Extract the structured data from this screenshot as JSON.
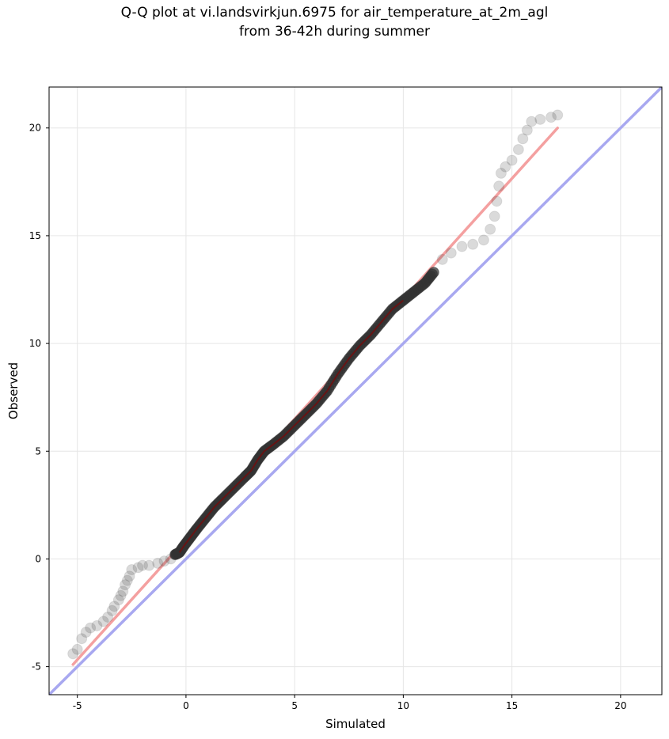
{
  "chart_data": {
    "type": "scatter",
    "title_line1": "Q-Q plot at vi.landsvirkjun.6975 for air_temperature_at_2m_agl",
    "title_line2": "from 36-42h during summer",
    "xlabel": "Simulated",
    "ylabel": "Observed",
    "xlim": [
      -6.3,
      21.9
    ],
    "ylim": [
      -6.3,
      21.9
    ],
    "xticks": [
      -5,
      0,
      5,
      10,
      15,
      20
    ],
    "yticks": [
      -5,
      0,
      5,
      10,
      15,
      20
    ],
    "grid": true,
    "colors": {
      "points": "#333333",
      "fit_line": "#f4a0a0",
      "identity_line": "#a8a8f0",
      "dense_core": "#8b0000"
    },
    "series": [
      {
        "values": [
          [
            -5.2,
            -4.4
          ],
          [
            -5.0,
            -4.2
          ],
          [
            -4.8,
            -3.7
          ],
          [
            -4.6,
            -3.4
          ],
          [
            -4.4,
            -3.2
          ],
          [
            -4.1,
            -3.1
          ],
          [
            -3.8,
            -2.9
          ],
          [
            -3.6,
            -2.7
          ],
          [
            -3.4,
            -2.4
          ],
          [
            -3.3,
            -2.2
          ],
          [
            -3.1,
            -1.9
          ],
          [
            -3.0,
            -1.7
          ],
          [
            -2.9,
            -1.5
          ],
          [
            -2.8,
            -1.2
          ],
          [
            -2.7,
            -1.0
          ],
          [
            -2.6,
            -0.8
          ],
          [
            -2.5,
            -0.5
          ],
          [
            -2.2,
            -0.4
          ],
          [
            -2.0,
            -0.3
          ],
          [
            -1.7,
            -0.3
          ],
          [
            -1.3,
            -0.2
          ],
          [
            -1.0,
            -0.1
          ],
          [
            -0.7,
            0.0
          ],
          [
            -0.5,
            0.2
          ],
          [
            -0.3,
            0.3
          ],
          [
            -0.1,
            0.6
          ],
          [
            0.2,
            1.0
          ],
          [
            0.5,
            1.4
          ],
          [
            0.9,
            1.9
          ],
          [
            1.3,
            2.4
          ],
          [
            1.7,
            2.8
          ],
          [
            2.2,
            3.3
          ],
          [
            2.7,
            3.8
          ],
          [
            3.0,
            4.1
          ],
          [
            3.3,
            4.6
          ],
          [
            3.6,
            5.0
          ],
          [
            4.0,
            5.3
          ],
          [
            4.5,
            5.7
          ],
          [
            5.0,
            6.2
          ],
          [
            5.5,
            6.7
          ],
          [
            6.0,
            7.2
          ],
          [
            6.5,
            7.8
          ],
          [
            7.0,
            8.6
          ],
          [
            7.5,
            9.3
          ],
          [
            8.0,
            9.9
          ],
          [
            8.5,
            10.4
          ],
          [
            9.0,
            11.0
          ],
          [
            9.5,
            11.6
          ],
          [
            10.0,
            12.0
          ],
          [
            10.5,
            12.4
          ],
          [
            11.0,
            12.8
          ],
          [
            11.4,
            13.3
          ],
          [
            11.8,
            13.9
          ],
          [
            12.2,
            14.2
          ],
          [
            12.7,
            14.5
          ],
          [
            13.2,
            14.6
          ],
          [
            13.7,
            14.8
          ],
          [
            14.0,
            15.3
          ],
          [
            14.2,
            15.9
          ],
          [
            14.3,
            16.6
          ],
          [
            14.4,
            17.3
          ],
          [
            14.5,
            17.9
          ],
          [
            14.7,
            18.2
          ],
          [
            15.0,
            18.5
          ],
          [
            15.3,
            19.0
          ],
          [
            15.5,
            19.5
          ],
          [
            15.7,
            19.9
          ],
          [
            15.9,
            20.3
          ],
          [
            16.3,
            20.4
          ],
          [
            16.8,
            20.5
          ],
          [
            17.1,
            20.6
          ]
        ]
      }
    ],
    "fit_line": [
      [
        -5.2,
        -4.9
      ],
      [
        17.1,
        20.0
      ]
    ],
    "identity_line": [
      [
        -6.3,
        -6.3
      ],
      [
        21.9,
        21.9
      ]
    ]
  }
}
